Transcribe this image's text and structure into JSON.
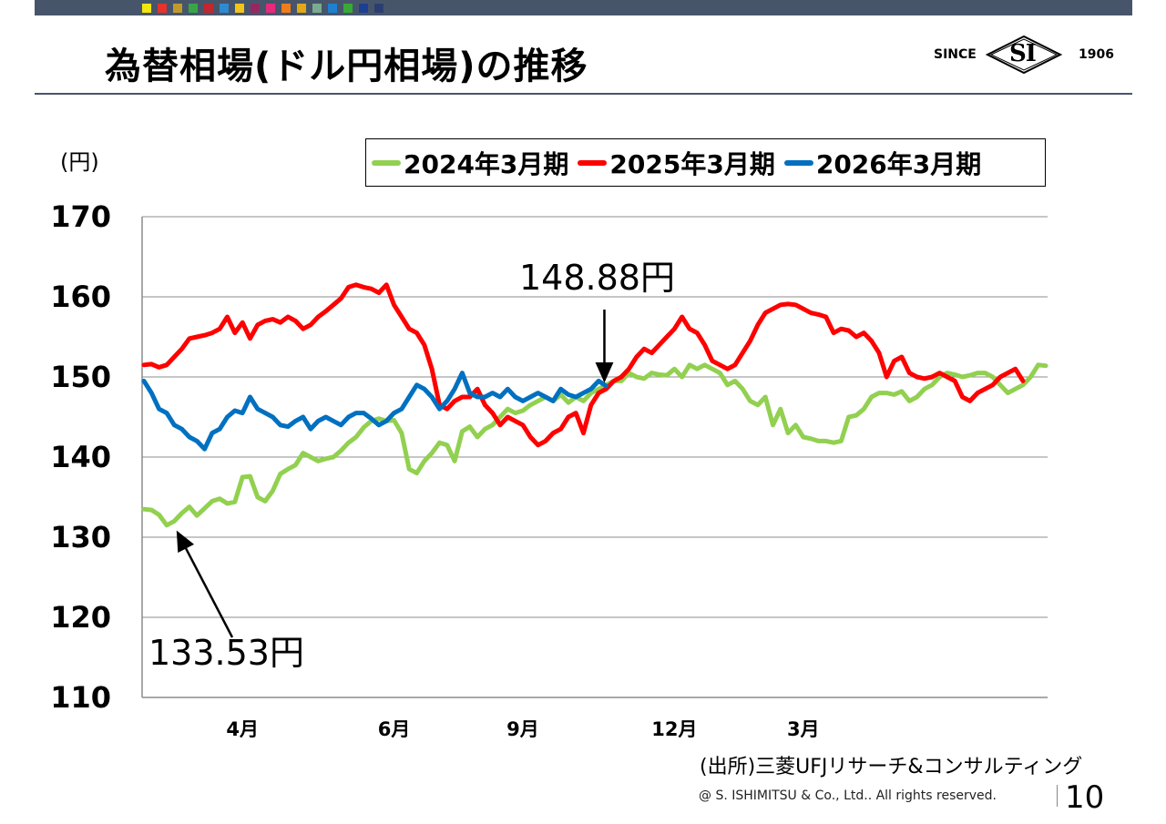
{
  "header": {
    "title": "為替相場(ドル円相場)の推移",
    "logo_since": "SINCE",
    "logo_mark": "SI",
    "logo_year": "1906",
    "palette": [
      "#f2e60c",
      "#e8322c",
      "#c19a2e",
      "#3aa548",
      "#c1272d",
      "#2e8bd0",
      "#f0c419",
      "#962761",
      "#e52b7b",
      "#ef7d1a",
      "#e2a817",
      "#7aab8e",
      "#1f7fd0",
      "#39a935",
      "#1d3f93",
      "#2a3f70"
    ]
  },
  "chart_data": {
    "type": "line",
    "unit_label": "(円)",
    "ylim": [
      110,
      170
    ],
    "yticks": [
      "170",
      "160",
      "150",
      "140",
      "130",
      "120",
      "110"
    ],
    "xticks": [
      "4月",
      "6月",
      "9月",
      "12月",
      "3月"
    ],
    "grid": true,
    "legend_position": "top",
    "series": [
      {
        "name": "2024年3月期",
        "color": "#92d050",
        "values": [
          133.5,
          133.4,
          132.8,
          131.5,
          132.0,
          133.0,
          133.8,
          132.7,
          133.6,
          134.5,
          134.8,
          134.2,
          134.4,
          137.5,
          137.6,
          135.0,
          134.5,
          135.8,
          137.9,
          138.5,
          139.0,
          140.5,
          140.0,
          139.5,
          139.8,
          140.0,
          140.8,
          141.8,
          142.5,
          143.7,
          144.5,
          144.8,
          144.5,
          144.6,
          143.0,
          138.5,
          138.0,
          139.5,
          140.5,
          141.8,
          141.5,
          139.5,
          143.2,
          143.8,
          142.5,
          143.5,
          144.0,
          145.0,
          146.0,
          145.5,
          145.8,
          146.5,
          147.0,
          147.5,
          147.0,
          147.8,
          146.8,
          147.5,
          147.0,
          148.0,
          148.5,
          149.0,
          149.5,
          149.5,
          150.5,
          150.0,
          149.8,
          150.5,
          150.3,
          150.2,
          151.0,
          150.0,
          151.5,
          151.0,
          151.5,
          151.0,
          150.5,
          149.0,
          149.5,
          148.5,
          147.0,
          146.5,
          147.5,
          144.0,
          146.0,
          143.0,
          144.0,
          142.5,
          142.3,
          142.0,
          142.0,
          141.8,
          142.0,
          145.0,
          145.2,
          146.0,
          147.5,
          148.0,
          148.0,
          147.8,
          148.2,
          147.0,
          147.5,
          148.5,
          149.0,
          150.0,
          150.5,
          150.3,
          150.0,
          150.2,
          150.5,
          150.5,
          150.0,
          149.0,
          148.0,
          148.5,
          149.0,
          150.0,
          151.5,
          151.4
        ]
      },
      {
        "name": "2025年3月期",
        "color": "#ff0000",
        "values": [
          151.5,
          151.6,
          151.2,
          151.5,
          152.5,
          153.5,
          154.8,
          155.0,
          155.2,
          155.5,
          156.0,
          157.5,
          155.5,
          156.8,
          154.8,
          156.5,
          157.0,
          157.2,
          156.8,
          157.5,
          157.0,
          156.0,
          156.5,
          157.5,
          158.2,
          159.0,
          159.8,
          161.2,
          161.5,
          161.2,
          161.0,
          160.5,
          161.5,
          159.0,
          157.5,
          156.0,
          155.5,
          154.0,
          151.0,
          146.5,
          146.0,
          147.0,
          147.5,
          147.5,
          148.5,
          146.5,
          145.5,
          144.0,
          145.0,
          144.5,
          144.0,
          142.5,
          141.5,
          142.0,
          143.0,
          143.5,
          145.0,
          145.5,
          143.0,
          146.5,
          148.0,
          148.5,
          149.5,
          150.0,
          151.0,
          152.5,
          153.5,
          153.0,
          154.0,
          155.0,
          156.0,
          157.5,
          156.0,
          155.5,
          154.0,
          152.0,
          151.5,
          151.0,
          151.5,
          153.0,
          154.5,
          156.5,
          158.0,
          158.5,
          159.0,
          159.1,
          159.0,
          158.5,
          158.0,
          157.8,
          157.5,
          155.5,
          156.0,
          155.8,
          155.0,
          155.5,
          154.5,
          153.0,
          150.0,
          152.0,
          152.5,
          150.5,
          150.0,
          149.8,
          150.0,
          150.5,
          150.0,
          149.5,
          147.5,
          147.0,
          148.0,
          148.5,
          149.0,
          150.0,
          150.5,
          151.0,
          149.5
        ]
      },
      {
        "name": "2026年3月期",
        "color": "#0070c0",
        "values": [
          149.5,
          148.0,
          146.0,
          145.5,
          144.0,
          143.5,
          142.5,
          142.0,
          141.0,
          143.0,
          143.5,
          145.0,
          145.8,
          145.5,
          147.5,
          146.0,
          145.5,
          145.0,
          144.0,
          143.8,
          144.5,
          145.0,
          143.5,
          144.5,
          145.0,
          144.5,
          144.0,
          145.0,
          145.5,
          145.5,
          144.8,
          144.0,
          144.5,
          145.5,
          146.0,
          147.5,
          149.0,
          148.5,
          147.5,
          146.0,
          147.0,
          148.5,
          150.5,
          148.0,
          147.5,
          147.5,
          148.0,
          147.5,
          148.5,
          147.5,
          147.0,
          147.5,
          148.0,
          147.5,
          147.0,
          148.5,
          147.8,
          147.5,
          148.0,
          148.5,
          149.5,
          148.88
        ]
      }
    ],
    "annotations": [
      {
        "text": "133.53円"
      },
      {
        "text": "148.88円"
      }
    ]
  },
  "footer": {
    "source": "(出所)三菱UFJリサーチ&コンサルティング",
    "copyright": "@ S. ISHIMITSU & Co., Ltd.. All rights reserved.",
    "page_number": "10"
  }
}
